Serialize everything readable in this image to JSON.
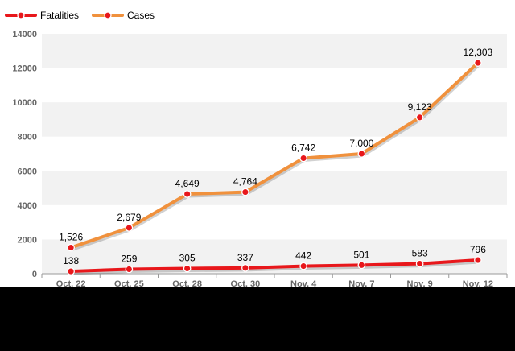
{
  "chart_data": {
    "type": "line",
    "title": "",
    "xlabel": "",
    "ylabel": "",
    "categories": [
      "Oct. 22",
      "Oct. 25",
      "Oct. 28",
      "Oct. 30",
      "Nov. 4",
      "Nov. 7",
      "Nov. 9",
      "Nov. 12"
    ],
    "ylim": [
      0,
      14000
    ],
    "yticks": [
      0,
      2000,
      4000,
      6000,
      8000,
      10000,
      12000,
      14000
    ],
    "grid": "horizontal alternating bands",
    "legend_position": "top-left",
    "series": [
      {
        "name": "Fatalities",
        "color": "#e8171b",
        "marker_color": "#e8171b",
        "values": [
          138,
          259,
          305,
          337,
          442,
          501,
          583,
          796
        ],
        "labels": [
          "138",
          "259",
          "305",
          "337",
          "442",
          "501",
          "583",
          "796"
        ]
      },
      {
        "name": "Cases",
        "color": "#f0913d",
        "marker_color": "#e8171b",
        "values": [
          1526,
          2679,
          4649,
          4764,
          6742,
          7000,
          9123,
          12303
        ],
        "labels": [
          "1,526",
          "2,679",
          "4,649",
          "4,764",
          "6,742",
          "7,000",
          "9,123",
          "12,303"
        ]
      }
    ],
    "colors": {
      "plot_background": "#ffffff",
      "band": "#f2f2f2",
      "page_background": "#000000",
      "axis": "#999999"
    }
  }
}
